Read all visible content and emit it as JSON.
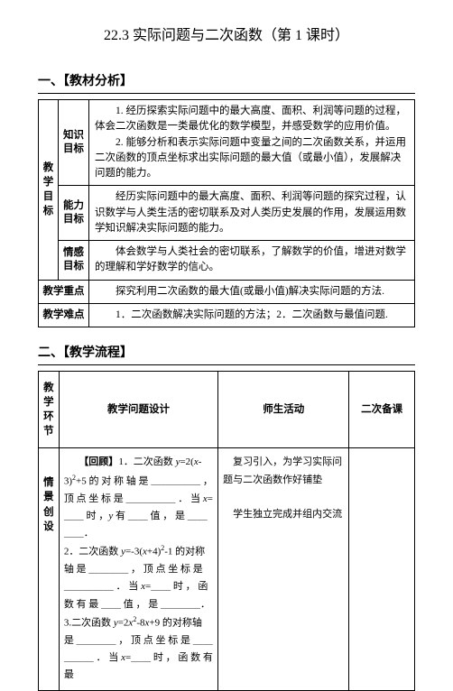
{
  "title": "22.3  实际问题与二次函数（第 1 课时）",
  "section1": {
    "header": "一、【教材分析】",
    "rowspan_label": "教学目标",
    "rows": [
      {
        "label": "知识目标",
        "text": "　　1. 经历探索实际问题中的最大高度、面积、利润等问题的过程，体会二次函数是一类最优化的数学模型，并感受数学的应用价值。\n　　2. 能够分析和表示实际问题中变量之间的二次函数关系，并运用二次函数的顶点坐标求出实际问题的最大值（或最小值），发展解决问题的能力。"
      },
      {
        "label": "能力目标",
        "text": "　　经历实际问题中的最大高度、面积、利润等问题的探究过程，认识数学与人类生活的密切联系及对人类历史发展的作用，发展运用数学知识解决实际问题的能力。"
      },
      {
        "label": "情感目标",
        "text": "　　体会数学与人类社会的密切联系，了解数学的价值，增进对数学的理解和学好数学的信心。"
      }
    ],
    "focus": {
      "label": "教学重点",
      "text": "　　探究利用二次函数的最大值(或最小值)解决实际问题的方法."
    },
    "difficulty": {
      "label": "教学难点",
      "text": "　　1．二次函数解决实际问题的方法；2．二次函数与最值问题."
    }
  },
  "section2": {
    "header": "二、【教学流程】",
    "columns": [
      "教学环节",
      "教学问题设计",
      "师生活动",
      "二次备课"
    ],
    "stage_label": "情景创设",
    "design_html": "　　<span class=\"bold-inline\">【回顾】</span>1．二次函数 <i>y</i>=2(<i>x</i>-3)<sup>2</sup>+5 的 对 称 轴 是 ＿＿＿＿＿ ， 顶 点 坐 标 是 ＿＿＿＿＿ ． 当 <i>x</i>=＿＿ 时 ，<i>y</i> 有 ＿＿ 值 ， 是 ＿＿＿＿．<br>2．二次函数 <i>y</i>=-3(<i>x</i>+4)<sup>2</sup>-1 的对称轴 是 ＿＿＿＿ ， 顶 点 坐 标 是 ＿＿＿＿＿ ． 当 <i>x</i>=＿＿ 时 ， 函 数 有 最 ＿＿ 值 ， 是 ＿＿＿＿．<br>3.二次函数 <i>y</i>=2<i>x</i><sup>2</sup>-8<i>x</i>+9 的对称轴 是 ＿＿＿＿ ， 顶 点 坐 标 是 ＿＿＿＿＿ ． 当 <i>x</i>=＿＿ 时 ， 函 数 有 最",
    "activity": "　复习引入，为学习实际问题与二次函数作好铺垫\n\n　学生独立完成并组内交流"
  }
}
